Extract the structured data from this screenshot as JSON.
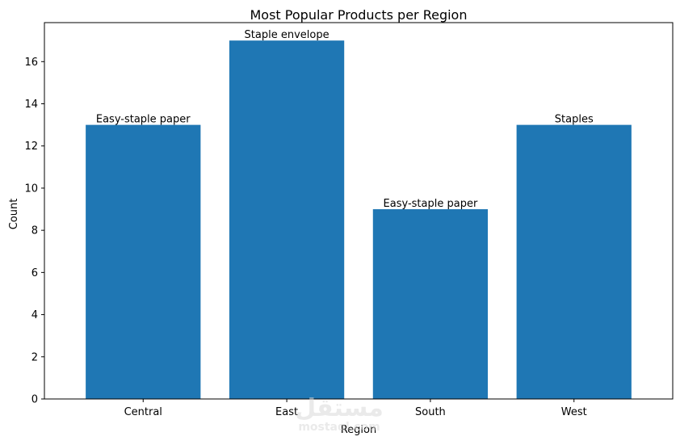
{
  "chart_data": {
    "type": "bar",
    "title": "Most Popular Products per Region",
    "xlabel": "Region",
    "ylabel": "Count",
    "categories": [
      "Central",
      "East",
      "South",
      "West"
    ],
    "values": [
      13,
      17,
      9,
      13
    ],
    "bar_labels": [
      "Easy-staple paper",
      "Staple envelope",
      "Easy-staple paper",
      "Staples"
    ],
    "ylim": [
      0,
      17.85
    ],
    "yticks": [
      0,
      2,
      4,
      6,
      8,
      10,
      12,
      14,
      16
    ],
    "grid": false,
    "bar_color": "#1f77b4"
  },
  "watermark": {
    "text": "مستقل",
    "subtext": "mostaql.com"
  }
}
